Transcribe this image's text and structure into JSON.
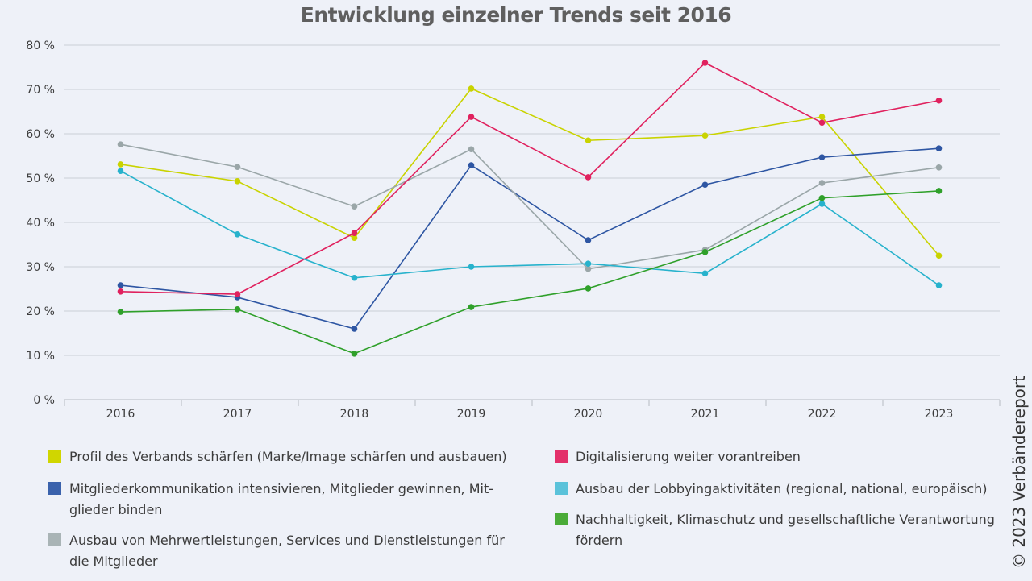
{
  "chart_data": {
    "type": "line",
    "title": "Entwicklung einzelner Trends seit 2016",
    "xlabel": "",
    "ylabel": "",
    "categories": [
      "2016",
      "2017",
      "2018",
      "2019",
      "2020",
      "2021",
      "2022",
      "2023"
    ],
    "ylim": [
      0,
      80
    ],
    "yticks": [
      "0 %",
      "10 %",
      "20 %",
      "30 %",
      "40 %",
      "50 %",
      "60 %",
      "70 %",
      "80 %"
    ],
    "grid": true,
    "legend_placement": "bottom",
    "series": [
      {
        "name": "Profil des Verbands schärfen (Marke/Image schärfen und ausbauen)",
        "color": "#c9d300",
        "swatch": "#d0d600",
        "values": [
          53.1,
          49.3,
          36.5,
          70.2,
          58.5,
          59.6,
          63.8,
          32.5
        ]
      },
      {
        "name": "Mitgliederkommunikation intensivieren, Mitglieder gewinnen, Mit-glieder binden",
        "color": "#2e56a3",
        "swatch": "#3a62ac",
        "values": [
          25.8,
          23.1,
          16.0,
          52.9,
          36.0,
          48.5,
          54.7,
          56.7
        ]
      },
      {
        "name": "Ausbau von Mehrwertleistungen, Services und Dienstleistungen für die Mitglieder",
        "color": "#9aa6a8",
        "swatch": "#a9b4b6",
        "values": [
          57.6,
          52.5,
          43.6,
          56.5,
          29.5,
          33.8,
          48.9,
          52.4
        ]
      },
      {
        "name": "Digitalisierung weiter vorantreiben",
        "color": "#e0215e",
        "swatch": "#e3306a",
        "values": [
          24.4,
          23.8,
          37.6,
          63.8,
          50.2,
          76.0,
          62.5,
          67.5
        ]
      },
      {
        "name": "Ausbau der Lobbyingaktivitäten (regional, national, europäisch)",
        "color": "#27b2cc",
        "swatch": "#5ac2da",
        "values": [
          51.6,
          37.3,
          27.5,
          30.0,
          30.7,
          28.5,
          44.2,
          25.8
        ]
      },
      {
        "name": "Nachhaltigkeit, Klimaschutz und gesellschaftliche Verantwortung fördern",
        "color": "#2fa02a",
        "swatch": "#4aab38",
        "values": [
          19.8,
          20.4,
          10.4,
          20.9,
          25.1,
          33.3,
          45.5,
          47.1
        ]
      }
    ]
  },
  "legend": {
    "items": [
      {
        "line1": "Profil des Verbands schärfen (Marke/Image schärfen und ausbauen)",
        "line2": ""
      },
      {
        "line1": "Mitgliederkommunikation intensivieren, Mitglieder gewinnen, Mit-",
        "line2": "glieder binden"
      },
      {
        "line1": "Ausbau von Mehrwertleistungen, Services und Dienstleistungen für",
        "line2": "die Mitglieder"
      },
      {
        "line1": "Digitalisierung weiter vorantreiben",
        "line2": ""
      },
      {
        "line1": "Ausbau der Lobbyingaktivitäten (regional, national, europäisch)",
        "line2": ""
      },
      {
        "line1": "Nachhaltigkeit, Klimaschutz und gesellschaftliche Verantwortung",
        "line2": "fördern"
      }
    ]
  },
  "copyright": "© 2023 Verbändereport"
}
